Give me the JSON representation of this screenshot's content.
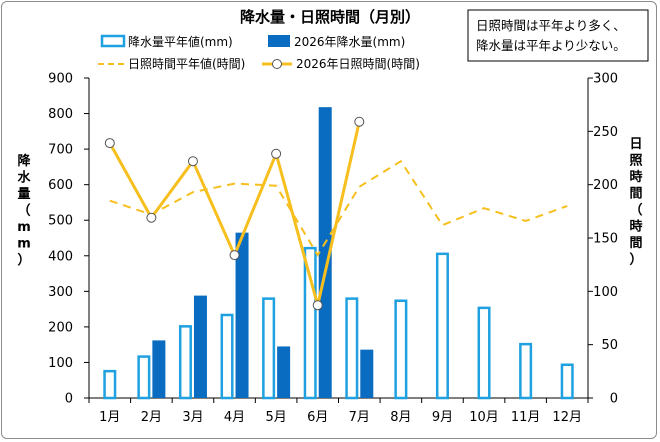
{
  "chart_data": {
    "type": "bar+line",
    "title": "降水量・日照時間（月別）",
    "note": [
      "日照時間は平年より多く、",
      "降水量は平年より少ない。"
    ],
    "categories": [
      "1月",
      "2月",
      "3月",
      "4月",
      "5月",
      "6月",
      "7月",
      "8月",
      "9月",
      "10月",
      "11月",
      "12月"
    ],
    "ylabel_left": [
      "降",
      "水",
      "量",
      "（",
      "m",
      "m",
      "）"
    ],
    "ylabel_right": [
      "日",
      "照",
      "時",
      "間",
      "（",
      "時",
      "間",
      "）"
    ],
    "ylim_left": [
      0,
      900
    ],
    "yticks_left": [
      0,
      100,
      200,
      300,
      400,
      500,
      600,
      700,
      800,
      900
    ],
    "ylim_right": [
      0,
      300
    ],
    "yticks_right": [
      0,
      50,
      100,
      150,
      200,
      250,
      300
    ],
    "grid": false,
    "series": [
      {
        "name": "降水量平年値(mm)",
        "type": "bar-outline",
        "axis": "left",
        "color": "#1fa0e0",
        "values": [
          79,
          120,
          205,
          237,
          283,
          425,
          283,
          277,
          409,
          257,
          155,
          97
        ]
      },
      {
        "name": "2026年降水量(mm)",
        "type": "bar",
        "axis": "left",
        "color": "#0a6cc0",
        "values": [
          null,
          162,
          288,
          465,
          145,
          818,
          136,
          null,
          null,
          null,
          null,
          null
        ]
      },
      {
        "name": "日照時間平年値(時間)",
        "type": "line-dashed",
        "axis": "right",
        "color": "#f7bf1e",
        "values": [
          185,
          172,
          193,
          201,
          199,
          134,
          198,
          222,
          162,
          178,
          166,
          180
        ]
      },
      {
        "name": "2026年日照時間(時間)",
        "type": "line-markers",
        "axis": "right",
        "color": "#f7bf1e",
        "values": [
          239,
          169,
          222,
          134,
          229,
          87,
          259,
          null,
          null,
          null,
          null,
          null
        ]
      }
    ]
  }
}
